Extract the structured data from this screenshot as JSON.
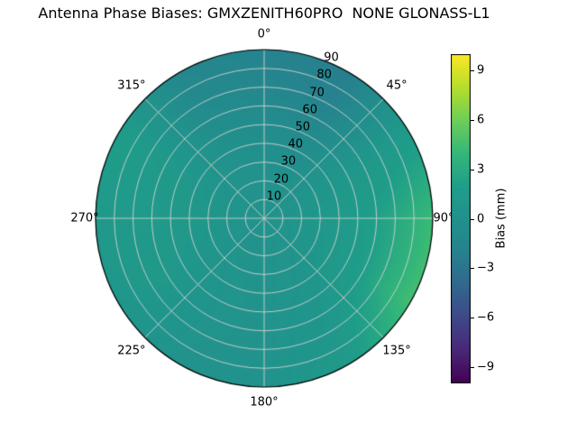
{
  "title": "Antenna Phase Biases: GMXZENITH60PRO  NONE GLONASS-L1",
  "chart_data": {
    "type": "heatmap",
    "projection": "polar",
    "title": "Antenna Phase Biases: GMXZENITH60PRO  NONE GLONASS-L1",
    "angular_ticks": [
      "0°",
      "45°",
      "90°",
      "135°",
      "180°",
      "225°",
      "270°",
      "315°"
    ],
    "angular_tick_degrees": [
      0,
      45,
      90,
      135,
      180,
      225,
      270,
      315
    ],
    "radial_ticks": [
      "10",
      "20",
      "30",
      "40",
      "50",
      "60",
      "70",
      "80",
      "90"
    ],
    "radial_tick_values": [
      10,
      20,
      30,
      40,
      50,
      60,
      70,
      80,
      90
    ],
    "radial_max": 90,
    "grid_on": true,
    "colorbar": {
      "label": "Bias (mm)",
      "ticks": [
        9,
        6,
        3,
        0,
        -3,
        -6,
        -9
      ],
      "tick_labels": [
        "9",
        "6",
        "3",
        "0",
        "−3",
        "−6",
        "−9"
      ],
      "vmin": -10,
      "vmax": 10,
      "position": "right"
    },
    "colormap": {
      "name": "viridis",
      "stops": [
        [
          "0.0",
          "#440154"
        ],
        [
          "0.1",
          "#482878"
        ],
        [
          "0.2",
          "#3e4989"
        ],
        [
          "0.3",
          "#31688e"
        ],
        [
          "0.4",
          "#26828e"
        ],
        [
          "0.5",
          "#21918c"
        ],
        [
          "0.6",
          "#1f9e89"
        ],
        [
          "0.7",
          "#35b779"
        ],
        [
          "0.8",
          "#6ece58"
        ],
        [
          "0.9",
          "#b5de2b"
        ],
        [
          "1.0",
          "#fde725"
        ]
      ]
    },
    "grid": {
      "azimuth_deg": [
        0,
        30,
        60,
        90,
        120,
        150,
        180,
        210,
        240,
        270,
        300,
        330
      ],
      "zenith_deg": [
        0,
        15,
        30,
        45,
        60,
        75,
        90
      ],
      "bias_mm": [
        [
          0.3,
          0.3,
          0.3,
          0.3,
          0.3,
          0.3,
          0.3,
          0.3,
          0.3,
          0.3,
          0.3,
          0.3
        ],
        [
          0.2,
          0.1,
          0.4,
          0.6,
          0.5,
          0.4,
          0.3,
          0.3,
          0.4,
          0.5,
          0.4,
          0.3
        ],
        [
          0.0,
          -0.2,
          0.6,
          1.0,
          0.8,
          0.5,
          0.3,
          0.4,
          0.7,
          0.9,
          0.7,
          0.2
        ],
        [
          -0.4,
          -0.6,
          0.8,
          1.5,
          1.3,
          0.6,
          0.3,
          0.5,
          0.9,
          1.2,
          1.0,
          0.0
        ],
        [
          -1.0,
          -1.4,
          0.9,
          2.2,
          2.0,
          0.8,
          0.3,
          0.5,
          1.1,
          1.4,
          1.2,
          -0.5
        ],
        [
          -1.5,
          -2.0,
          1.2,
          3.2,
          3.4,
          1.0,
          0.2,
          0.4,
          1.0,
          1.3,
          1.5,
          -1.0
        ],
        [
          -1.8,
          -2.3,
          1.6,
          4.3,
          4.6,
          1.4,
          0.2,
          0.3,
          0.8,
          1.2,
          1.8,
          -1.3
        ]
      ]
    }
  },
  "style": {
    "grid_line_color": "#d2d2d2",
    "outline_color": "#000000",
    "text_color": "#000000",
    "background_color": "#ffffff"
  }
}
